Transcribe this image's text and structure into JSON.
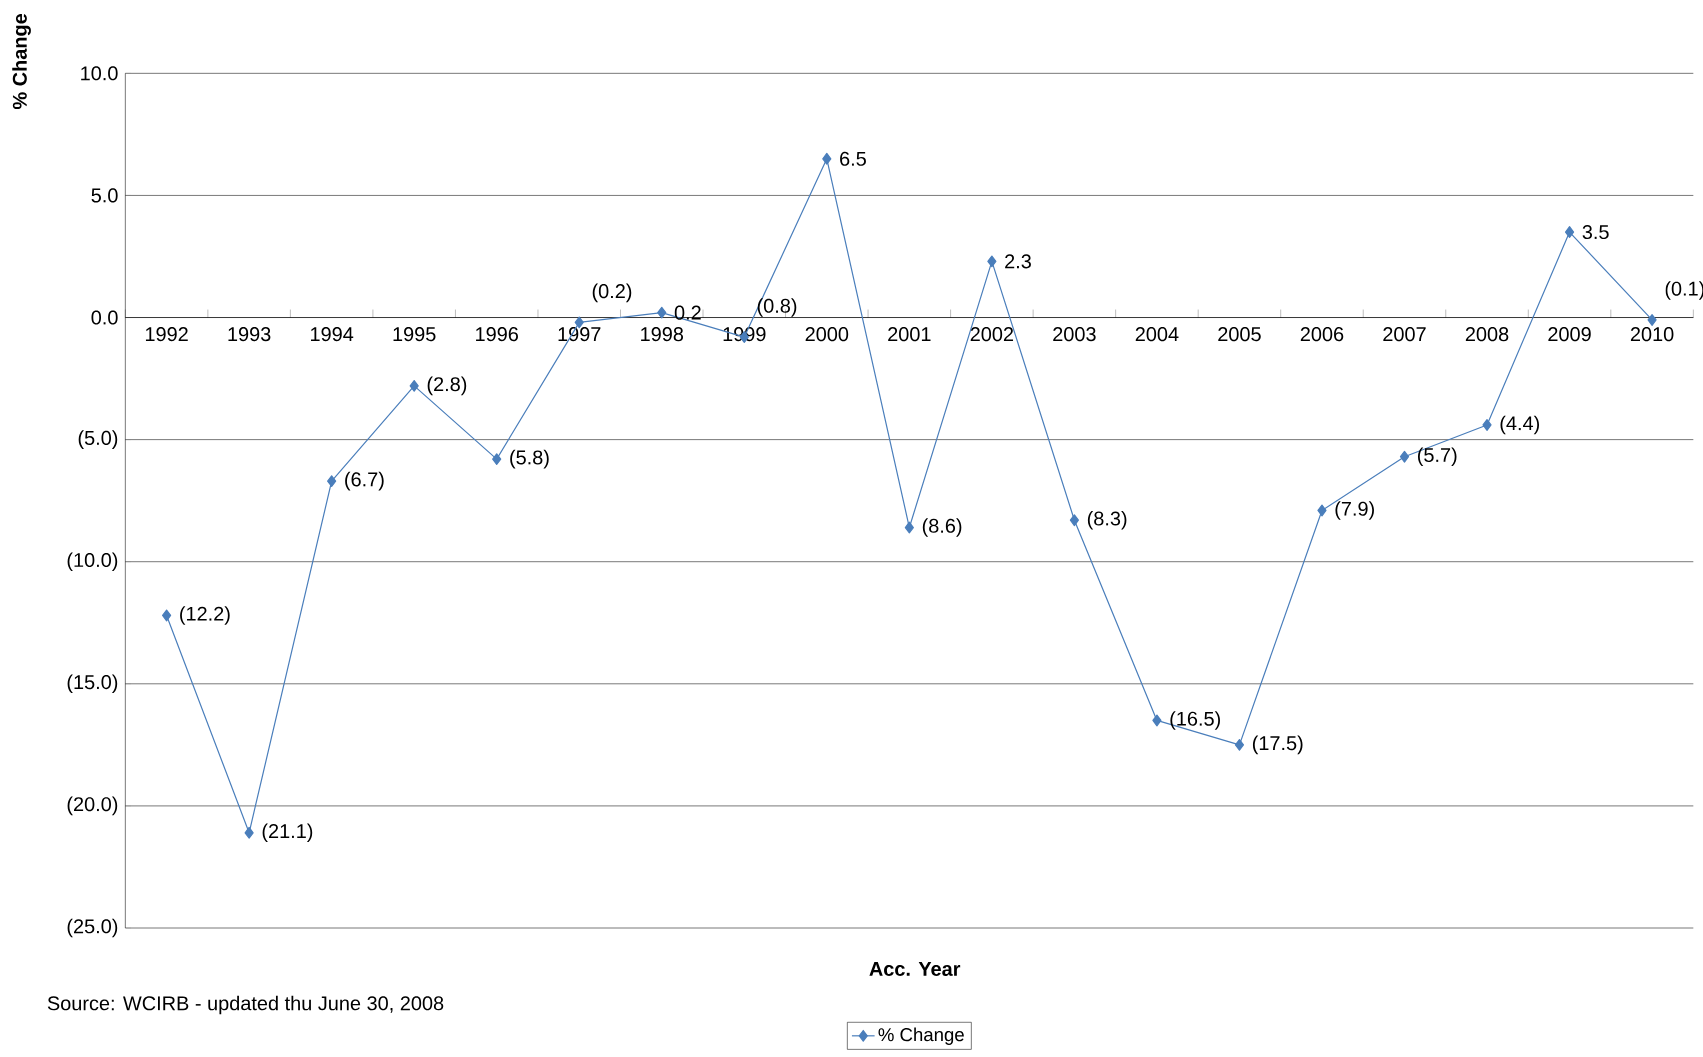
{
  "chart_data": {
    "type": "line",
    "xlabel": "Acc. Year",
    "ylabel": "% Change",
    "categories": [
      "1992",
      "1993",
      "1994",
      "1995",
      "1996",
      "1997",
      "1998",
      "1999",
      "2000",
      "2001",
      "2002",
      "2003",
      "2004",
      "2005",
      "2006",
      "2007",
      "2008",
      "2009",
      "2010"
    ],
    "series": [
      {
        "name": "% Change",
        "color": "#4a7ebb",
        "values": [
          -12.2,
          -21.1,
          -6.7,
          -2.8,
          -5.8,
          -0.2,
          0.2,
          -0.8,
          6.5,
          -8.6,
          2.3,
          -8.3,
          -16.5,
          -17.5,
          -7.9,
          -5.7,
          -4.4,
          3.5,
          -0.1
        ],
        "value_labels": [
          "(12.2)",
          "(21.1)",
          "(6.7)",
          "(2.8)",
          "(5.8)",
          "(0.2)",
          "0.2",
          "(0.8)",
          "6.5",
          "(8.6)",
          "2.3",
          "(8.3)",
          "(16.5)",
          "(17.5)",
          "(7.9)",
          "(5.7)",
          "(4.4)",
          "3.5",
          "(0.1)"
        ]
      }
    ],
    "ylim": [
      -25,
      10
    ],
    "yticks": [
      {
        "value": -25,
        "label": "(25.0)"
      },
      {
        "value": -20,
        "label": "(20.0)"
      },
      {
        "value": -15,
        "label": "(15.0)"
      },
      {
        "value": -10,
        "label": "(10.0)"
      },
      {
        "value": -5,
        "label": "(5.0)"
      },
      {
        "value": 0,
        "label": "0.0"
      },
      {
        "value": 5,
        "label": "5.0"
      },
      {
        "value": 10,
        "label": "10.0"
      }
    ],
    "grid": "y",
    "marker": "diamond",
    "line_style": "solid",
    "legend": "bottom",
    "annotations": [
      "Source:  WCIRB - updated thu June 30, 2008"
    ]
  }
}
